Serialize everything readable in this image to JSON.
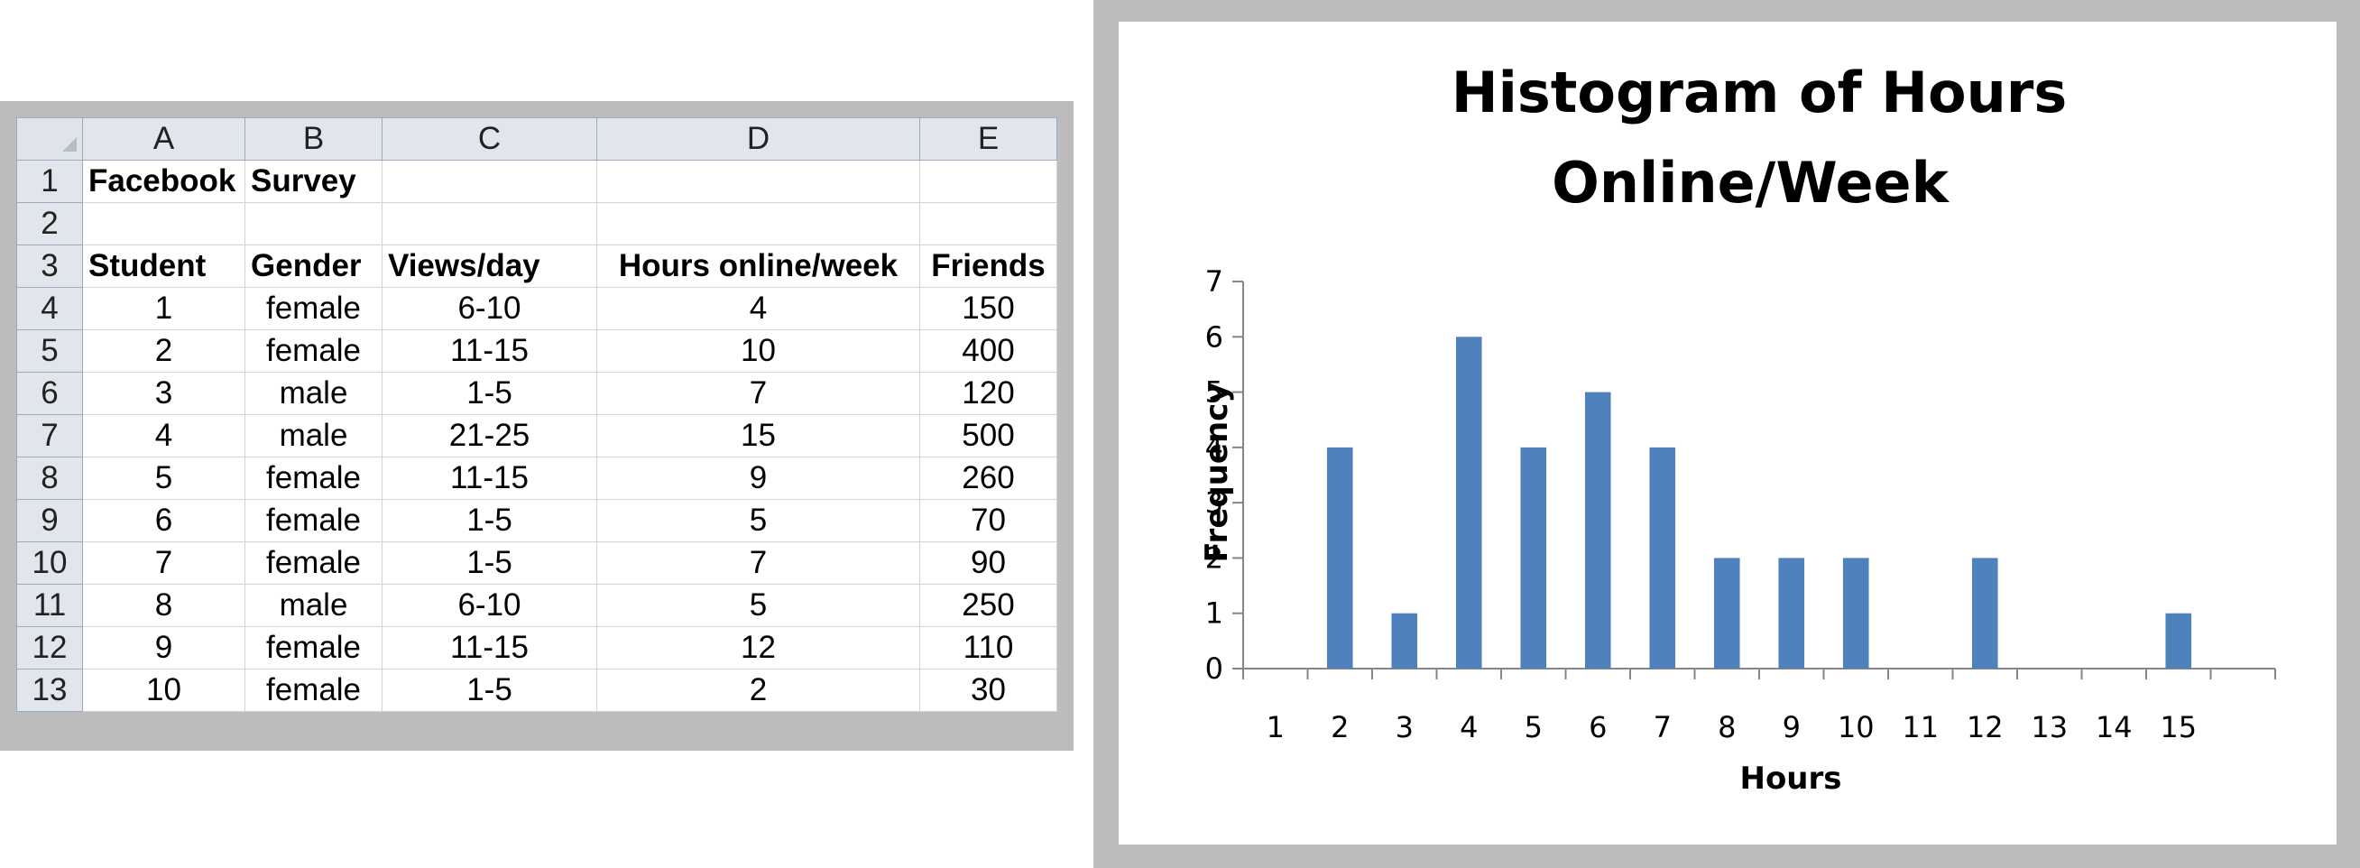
{
  "spreadsheet": {
    "column_headers": [
      "A",
      "B",
      "C",
      "D",
      "E"
    ],
    "row_numbers": [
      "1",
      "2",
      "3",
      "4",
      "5",
      "6",
      "7",
      "8",
      "9",
      "10",
      "11",
      "12",
      "13"
    ],
    "title_cells": [
      "Facebook",
      "Survey"
    ],
    "headers": [
      "Student",
      "Gender",
      "Views/day",
      "Hours online/week",
      "Friends"
    ],
    "rows": [
      [
        "1",
        "female",
        "6-10",
        "4",
        "150"
      ],
      [
        "2",
        "female",
        "11-15",
        "10",
        "400"
      ],
      [
        "3",
        "male",
        "1-5",
        "7",
        "120"
      ],
      [
        "4",
        "male",
        "21-25",
        "15",
        "500"
      ],
      [
        "5",
        "female",
        "11-15",
        "9",
        "260"
      ],
      [
        "6",
        "female",
        "1-5",
        "5",
        "70"
      ],
      [
        "7",
        "female",
        "1-5",
        "7",
        "90"
      ],
      [
        "8",
        "male",
        "6-10",
        "5",
        "250"
      ],
      [
        "9",
        "female",
        "11-15",
        "12",
        "110"
      ],
      [
        "10",
        "female",
        "1-5",
        "2",
        "30"
      ]
    ]
  },
  "chart_data": {
    "type": "bar",
    "title": "Histogram of Hours Online/Week",
    "title_lines": [
      "Histogram of Hours",
      "Online/Week"
    ],
    "xlabel": "Hours",
    "ylabel": "Frequency",
    "categories": [
      "1",
      "2",
      "3",
      "4",
      "5",
      "6",
      "7",
      "8",
      "9",
      "10",
      "11",
      "12",
      "13",
      "14",
      "15"
    ],
    "values": [
      0,
      4,
      1,
      6,
      4,
      5,
      4,
      2,
      2,
      2,
      0,
      2,
      0,
      0,
      1
    ],
    "ylim": [
      0,
      7
    ],
    "yticks": [
      0,
      1,
      2,
      3,
      4,
      5,
      6,
      7
    ],
    "grid": false,
    "legend": "none",
    "bar_color": "#4f81bd"
  }
}
